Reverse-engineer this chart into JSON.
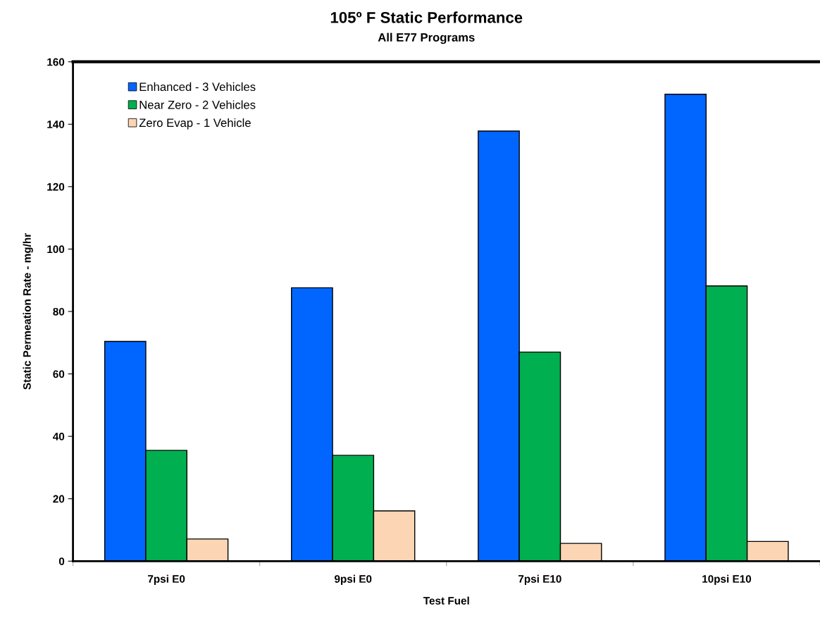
{
  "chart_data": {
    "type": "bar",
    "title": "105º F Static Performance",
    "subtitle": "All E77 Programs",
    "xlabel": "Test Fuel",
    "ylabel": "Static Permeation Rate - mg/hr",
    "categories": [
      "7psi E0",
      "9psi E0",
      "7psi E10",
      "10psi E10"
    ],
    "series": [
      {
        "name": "Enhanced - 3 Vehicles",
        "color": "#0066ff",
        "values": [
          70.4,
          87.6,
          137.8,
          149.6
        ]
      },
      {
        "name": "Near Zero - 2 Vehicles",
        "color": "#00b050",
        "values": [
          35.5,
          33.9,
          67.0,
          88.2
        ]
      },
      {
        "name": "Zero Evap - 1 Vehicle",
        "color": "#fcd5b4",
        "values": [
          7.1,
          16.1,
          5.7,
          6.3
        ]
      }
    ],
    "ylim": [
      0,
      160
    ],
    "yticks": [
      0,
      20,
      40,
      60,
      80,
      100,
      120,
      140,
      160
    ],
    "grid": false,
    "legend": "top left"
  }
}
